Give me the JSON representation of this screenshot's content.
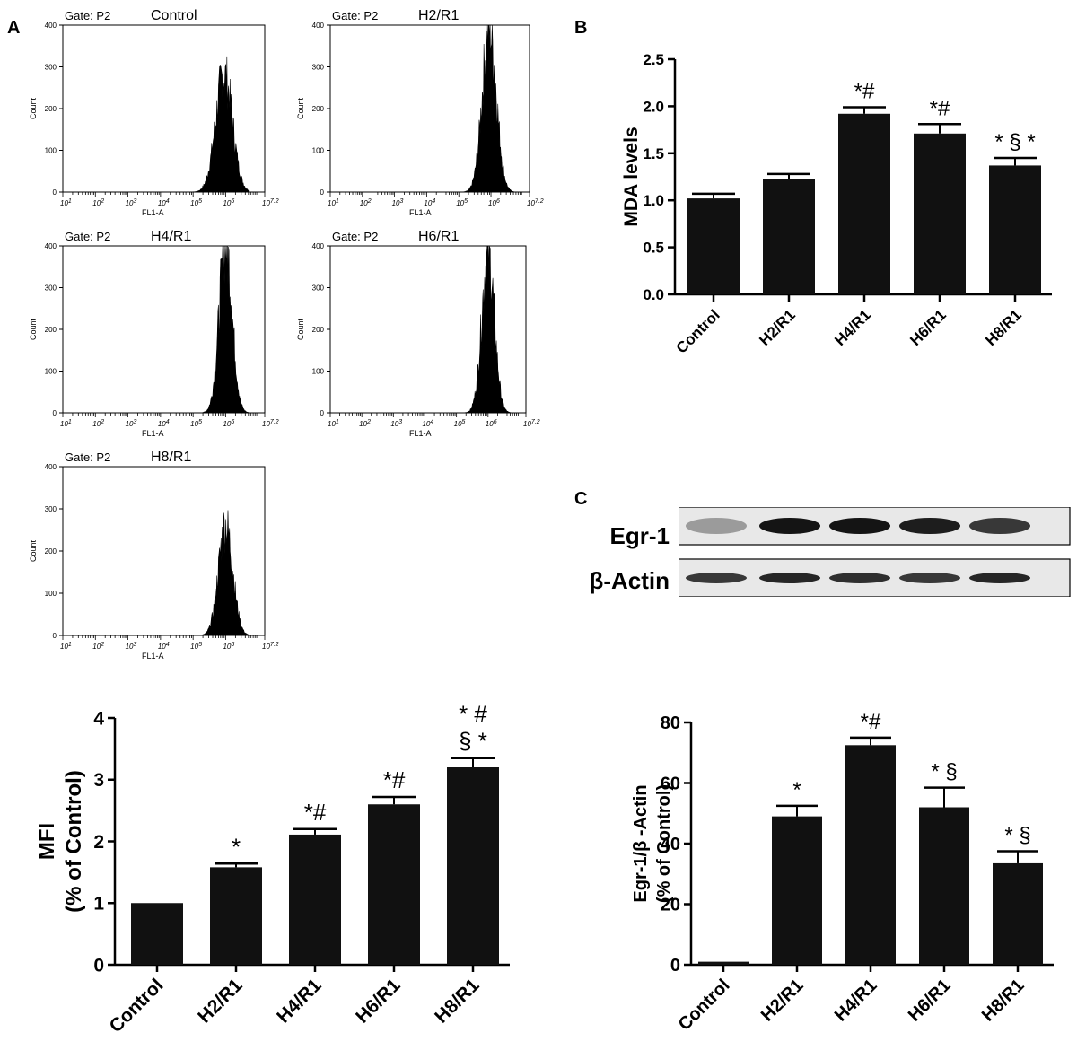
{
  "panels": {
    "a": "A",
    "b": "B",
    "c": "C"
  },
  "colors": {
    "bar": "#111111",
    "axis": "#000000",
    "histogram": "#000000"
  },
  "flow": {
    "gate_text": "Gate: P2",
    "xlabel": "FL1-A",
    "ylabel": "Count",
    "yticks": [
      "0",
      "100",
      "200",
      "300",
      "400"
    ],
    "xticks": [
      "10^1",
      "10^2",
      "10^3",
      "10^4",
      "10^5",
      "10^6",
      "10^7.2"
    ],
    "histograms": [
      {
        "title": "Control",
        "peak_log": 5.95,
        "peak_count": 280,
        "spread": 0.26
      },
      {
        "title": "H2/R1",
        "peak_log": 5.95,
        "peak_count": 390,
        "spread": 0.22
      },
      {
        "title": "H4/R1",
        "peak_log": 6.0,
        "peak_count": 400,
        "spread": 0.2
      },
      {
        "title": "H6/R1",
        "peak_log": 6.0,
        "peak_count": 380,
        "spread": 0.2
      },
      {
        "title": "H8/R1",
        "peak_log": 6.0,
        "peak_count": 260,
        "spread": 0.22
      }
    ]
  },
  "chart_data": [
    {
      "id": "mfi",
      "type": "bar",
      "categories": [
        "Control",
        "H2/R1",
        "H4/R1",
        "H6/R1",
        "H8/R1"
      ],
      "values": [
        1.0,
        1.58,
        2.11,
        2.6,
        3.2
      ],
      "errors": [
        0.0,
        0.06,
        0.09,
        0.12,
        0.15
      ],
      "annotations": [
        [],
        [
          "*"
        ],
        [
          "*#"
        ],
        [
          "*#"
        ],
        [
          "* #",
          "§ *"
        ]
      ],
      "ylabel": [
        "MFI",
        "(% of Control)"
      ],
      "ylim": [
        0,
        4
      ],
      "yticks": [
        "0",
        "1",
        "2",
        "3",
        "4"
      ]
    },
    {
      "id": "mda",
      "type": "bar",
      "categories": [
        "Control",
        "H2/R1",
        "H4/R1",
        "H6/R1",
        "H8/R1"
      ],
      "values": [
        1.02,
        1.23,
        1.92,
        1.71,
        1.37
      ],
      "errors": [
        0.05,
        0.05,
        0.07,
        0.1,
        0.08
      ],
      "annotations": [
        [],
        [],
        [
          "*#"
        ],
        [
          "*#"
        ],
        [
          "* § *"
        ]
      ],
      "ylabel": [
        "MDA levels"
      ],
      "ylim": [
        0,
        2.5
      ],
      "yticks": [
        "0.0",
        "0.5",
        "1.0",
        "1.5",
        "2.0",
        "2.5"
      ]
    },
    {
      "id": "egr",
      "type": "bar",
      "categories": [
        "Control",
        "H2/R1",
        "H4/R1",
        "H6/R1",
        "H8/R1"
      ],
      "values": [
        1.0,
        49,
        72.5,
        52,
        33.5
      ],
      "errors": [
        0.0,
        3.5,
        2.5,
        6.5,
        4
      ],
      "annotations": [
        [],
        [
          "*"
        ],
        [
          "*#"
        ],
        [
          "* §"
        ],
        [
          "* §"
        ]
      ],
      "ylabel": [
        "Egr-1/β -Actin",
        "(% of Control)"
      ],
      "ylim": [
        0,
        80
      ],
      "yticks": [
        "0",
        "20",
        "40",
        "60",
        "80"
      ]
    }
  ],
  "blot": {
    "rows": [
      {
        "label": "Egr-1",
        "intensities": [
          0.25,
          1.0,
          1.0,
          0.95,
          0.8
        ]
      },
      {
        "label": "β-Actin",
        "intensities": [
          0.8,
          0.9,
          0.85,
          0.8,
          0.9
        ]
      }
    ]
  }
}
